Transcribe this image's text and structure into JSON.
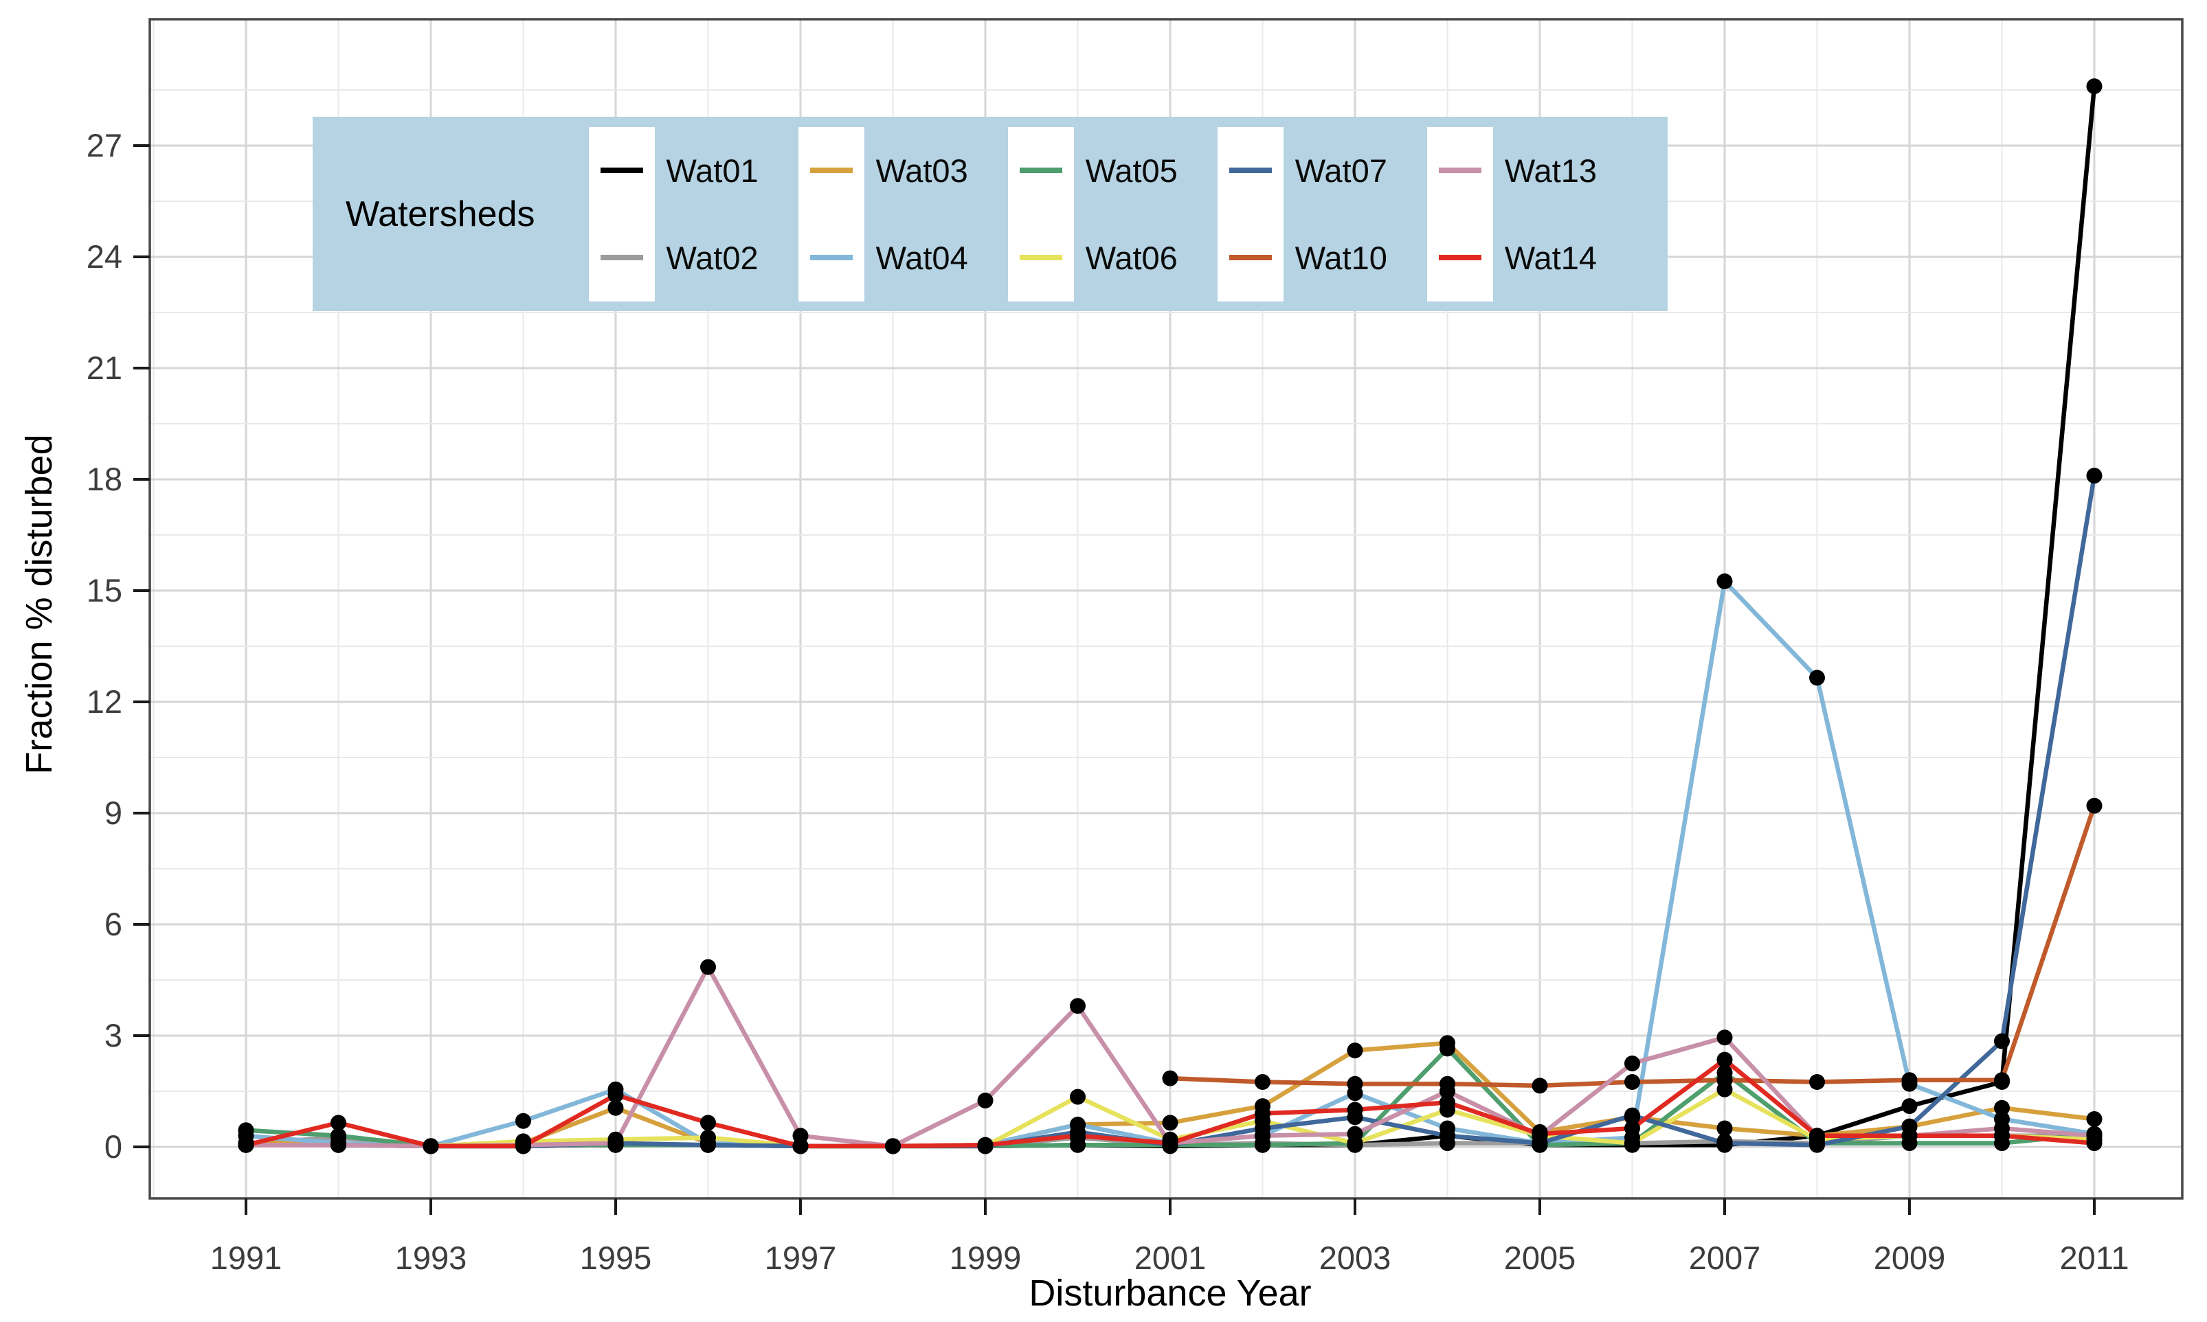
{
  "legend": {
    "title": "Watersheds",
    "background_color": "#b5d3e2",
    "key_fill": "#ffffff"
  },
  "chart_data": {
    "type": "line",
    "title": "",
    "xlabel": "Disturbance Year",
    "ylabel": "Fraction % disturbed",
    "x": [
      1991,
      1992,
      1993,
      1994,
      1995,
      1996,
      1997,
      1998,
      1999,
      2000,
      2001,
      2002,
      2003,
      2004,
      2005,
      2006,
      2007,
      2008,
      2009,
      2010,
      2011
    ],
    "x_tick_labels": [
      "1991",
      "1993",
      "1995",
      "1997",
      "1999",
      "2001",
      "2003",
      "2005",
      "2007",
      "2009",
      "2011"
    ],
    "y_ticks": [
      "0",
      "3",
      "6",
      "9",
      "12",
      "15",
      "18",
      "21",
      "24",
      "27"
    ],
    "ylim": [
      -1.4,
      30.4
    ],
    "xlim": [
      1989.96,
      2012.05
    ],
    "grid": true,
    "legend_position": "top-left-inset",
    "point_color": "#000000",
    "gridline_major_color": "#d6d6d6",
    "gridline_minor_color": "#e9e9e9",
    "panel_border_color": "#474747",
    "tick_label_color": "#3d3d3d",
    "series": [
      {
        "name": "Wat01",
        "color": "#000000",
        "values": [
          0.05,
          0.05,
          0.02,
          0.02,
          0.05,
          0.05,
          0.02,
          0.02,
          0.02,
          0.05,
          0.02,
          0.05,
          0.05,
          0.3,
          0.05,
          0.05,
          0.05,
          0.3,
          1.1,
          1.75,
          28.6
        ]
      },
      {
        "name": "Wat02",
        "color": "#9c9c9c",
        "values": [
          0.1,
          0.25,
          0.02,
          0.02,
          0.05,
          0.05,
          0.02,
          0.02,
          0.02,
          0.25,
          0.05,
          0.1,
          0.05,
          0.1,
          0.1,
          0.1,
          0.15,
          0.1,
          0.3,
          0.3,
          0.3
        ]
      },
      {
        "name": "Wat03",
        "color": "#d6a13d",
        "values": [
          0.1,
          0.1,
          0.02,
          0.1,
          1.05,
          0.1,
          0.02,
          0.02,
          0.05,
          0.6,
          0.65,
          1.1,
          2.6,
          2.8,
          0.4,
          0.8,
          0.5,
          0.3,
          0.55,
          1.05,
          0.75
        ]
      },
      {
        "name": "Wat04",
        "color": "#82b7d9",
        "values": [
          0.3,
          0.1,
          0.02,
          0.7,
          1.55,
          0.1,
          0.02,
          0.02,
          0.05,
          0.6,
          0.1,
          0.3,
          1.45,
          0.5,
          0.1,
          0.25,
          15.25,
          12.65,
          1.7,
          0.75,
          0.35
        ]
      },
      {
        "name": "Wat05",
        "color": "#4f9e6e",
        "values": [
          0.45,
          0.3,
          0.02,
          0.05,
          0.05,
          0.05,
          0.02,
          0.02,
          0.02,
          0.05,
          0.05,
          0.05,
          0.1,
          2.65,
          0.05,
          0.1,
          2.0,
          0.1,
          0.1,
          0.1,
          0.35
        ]
      },
      {
        "name": "Wat06",
        "color": "#e6e25c",
        "values": [
          0.05,
          0.05,
          0.02,
          0.15,
          0.2,
          0.25,
          0.02,
          0.02,
          0.02,
          1.35,
          0.2,
          0.7,
          0.1,
          1.0,
          0.3,
          0.1,
          1.55,
          0.2,
          0.3,
          0.3,
          0.2
        ]
      },
      {
        "name": "Wat07",
        "color": "#40689a",
        "values": [
          0.05,
          0.05,
          0.02,
          0.02,
          0.1,
          0.05,
          0.02,
          0.02,
          0.02,
          0.4,
          0.05,
          0.5,
          0.8,
          0.3,
          0.1,
          0.85,
          0.1,
          0.05,
          0.55,
          2.85,
          18.1
        ]
      },
      {
        "name": "Wat10",
        "color": "#c05a2b",
        "values": [
          null,
          null,
          null,
          null,
          null,
          null,
          null,
          null,
          null,
          null,
          1.85,
          1.75,
          1.7,
          1.7,
          1.65,
          1.75,
          1.8,
          1.75,
          1.8,
          1.8,
          9.2
        ]
      },
      {
        "name": "Wat13",
        "color": "#c88fa8",
        "values": [
          0.05,
          0.05,
          0.02,
          0.05,
          0.1,
          4.85,
          0.3,
          0.02,
          1.25,
          3.8,
          0.1,
          0.3,
          0.35,
          1.5,
          0.3,
          2.25,
          2.95,
          0.3,
          0.3,
          0.5,
          0.3
        ]
      },
      {
        "name": "Wat14",
        "color": "#e02a21",
        "values": [
          0.05,
          0.65,
          0.02,
          0.02,
          1.4,
          0.65,
          0.02,
          0.02,
          0.05,
          0.3,
          0.1,
          0.9,
          1.0,
          1.2,
          0.35,
          0.5,
          2.35,
          0.3,
          0.3,
          0.3,
          0.1
        ]
      }
    ]
  }
}
